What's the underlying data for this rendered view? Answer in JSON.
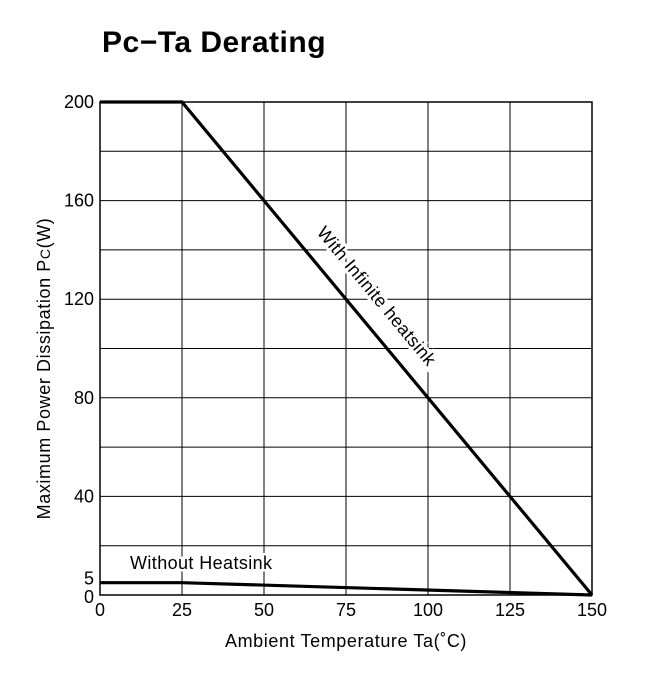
{
  "chart_data": {
    "type": "line",
    "title": "Pc−Ta Derating",
    "xlabel": "Ambient Temperature Ta(˚C)",
    "ylabel_main": "Maximum Power Dissipation P",
    "ylabel_sub": "C",
    "ylabel_end": "(W)",
    "xlim": [
      0,
      150
    ],
    "ylim": [
      0,
      200
    ],
    "grid": true,
    "x_ticks": [
      0,
      25,
      50,
      75,
      100,
      125,
      150
    ],
    "x_tick_labels": [
      "0",
      "25",
      "50",
      "75",
      "100",
      "125",
      "150"
    ],
    "y_ticks": [
      0,
      5,
      40,
      80,
      120,
      160,
      200
    ],
    "y_tick_labels": [
      "0",
      "5",
      "40",
      "80",
      "120",
      "160",
      "200"
    ],
    "y_grid": [
      20,
      40,
      60,
      80,
      100,
      120,
      140,
      160,
      180,
      200
    ],
    "series": [
      {
        "name": "With Infinite heatsink",
        "x": [
          0,
          25,
          150
        ],
        "y": [
          200,
          200,
          0
        ]
      },
      {
        "name": "Without Heatsink",
        "x": [
          0,
          25,
          150
        ],
        "y": [
          5,
          5,
          0
        ]
      }
    ]
  }
}
